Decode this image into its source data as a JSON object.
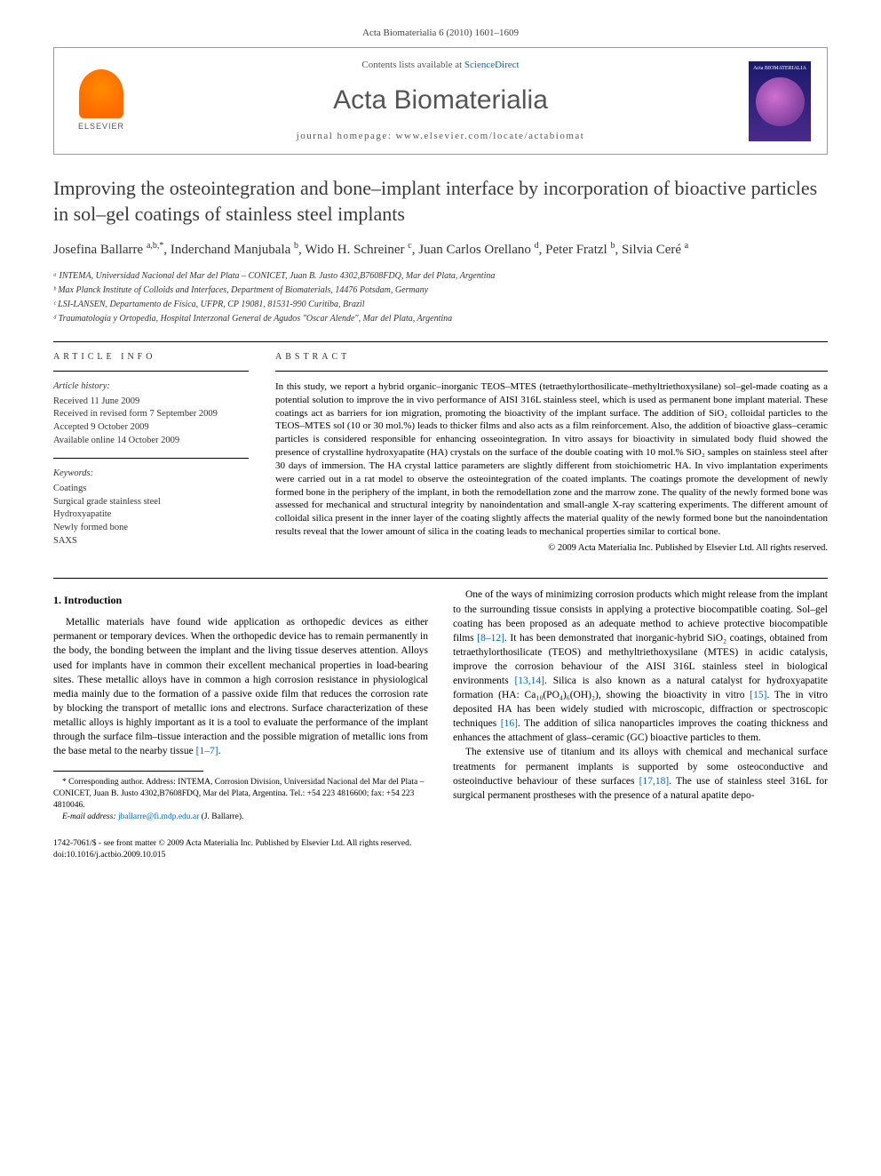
{
  "header": {
    "citation": "Acta Biomaterialia 6 (2010) 1601–1609"
  },
  "masthead": {
    "contents_prefix": "Contents lists available at ",
    "contents_link": "ScienceDirect",
    "publisher_label": "ELSEVIER",
    "journal_name": "Acta Biomaterialia",
    "homepage_prefix": "journal homepage: ",
    "homepage_url": "www.elsevier.com/locate/actabiomat",
    "cover_label": "Acta BIOMATERIALIA"
  },
  "article": {
    "title": "Improving the osteointegration and bone–implant interface by incorporation of bioactive particles in sol–gel coatings of stainless steel implants",
    "authors_html": "Josefina Ballarre <sup>a,b,*</sup>, Inderchand Manjubala <sup>b</sup>, Wido H. Schreiner <sup>c</sup>, Juan Carlos Orellano <sup>d</sup>, Peter Fratzl <sup>b</sup>, Silvia Ceré <sup>a</sup>",
    "affiliations": [
      "ᵃ INTEMA, Universidad Nacional del Mar del Plata – CONICET, Juan B. Justo 4302,B7608FDQ, Mar del Plata, Argentina",
      "ᵇ Max Planck Institute of Colloids and Interfaces, Department of Biomaterials, 14476 Potsdam, Germany",
      "ᶜ LSI-LANSEN, Departamento de Física, UFPR, CP 19081, 81531-990 Curitiba, Brazil",
      "ᵈ Traumatología y Ortopedia, Hospital Interzonal General de Agudos \"Oscar Alende\", Mar del Plata, Argentina"
    ]
  },
  "info": {
    "heading": "ARTICLE INFO",
    "history_label": "Article history:",
    "history": [
      "Received 11 June 2009",
      "Received in revised form 7 September 2009",
      "Accepted 9 October 2009",
      "Available online 14 October 2009"
    ],
    "keywords_label": "Keywords:",
    "keywords": [
      "Coatings",
      "Surgical grade stainless steel",
      "Hydroxyapatite",
      "Newly formed bone",
      "SAXS"
    ]
  },
  "abstract": {
    "heading": "ABSTRACT",
    "text": "In this study, we report a hybrid organic–inorganic TEOS–MTES (tetraethylorthosilicate–methyltriethoxysilane) sol–gel-made coating as a potential solution to improve the in vivo performance of AISI 316L stainless steel, which is used as permanent bone implant material. These coatings act as barriers for ion migration, promoting the bioactivity of the implant surface. The addition of SiO₂ colloidal particles to the TEOS–MTES sol (10 or 30 mol.%) leads to thicker films and also acts as a film reinforcement. Also, the addition of bioactive glass–ceramic particles is considered responsible for enhancing osseointegration. In vitro assays for bioactivity in simulated body fluid showed the presence of crystalline hydroxyapatite (HA) crystals on the surface of the double coating with 10 mol.% SiO₂ samples on stainless steel after 30 days of immersion. The HA crystal lattice parameters are slightly different from stoichiometric HA. In vivo implantation experiments were carried out in a rat model to observe the osteointegration of the coated implants. The coatings promote the development of newly formed bone in the periphery of the implant, in both the remodellation zone and the marrow zone. The quality of the newly formed bone was assessed for mechanical and structural integrity by nanoindentation and small-angle X-ray scattering experiments. The different amount of colloidal silica present in the inner layer of the coating slightly affects the material quality of the newly formed bone but the nanoindentation results reveal that the lower amount of silica in the coating leads to mechanical properties similar to cortical bone.",
    "copyright": "© 2009 Acta Materialia Inc. Published by Elsevier Ltd. All rights reserved."
  },
  "body": {
    "section_heading": "1. Introduction",
    "para1": "Metallic materials have found wide application as orthopedic devices as either permanent or temporary devices. When the orthopedic device has to remain permanently in the body, the bonding between the implant and the living tissue deserves attention. Alloys used for implants have in common their excellent mechanical properties in load-bearing sites. These metallic alloys have in common a high corrosion resistance in physiological media mainly due to the formation of a passive oxide film that reduces the corrosion rate by blocking the transport of metallic ions and electrons. Surface characterization of these metallic alloys is highly important as it is a tool to evaluate the performance of the implant through the surface film–tissue interaction and the possible migration of metallic ions from the base metal to the nearby tissue ",
    "ref1": "[1–7]",
    "para1_tail": ".",
    "para2_a": "One of the ways of minimizing corrosion products which might release from the implant to the surrounding tissue consists in applying a protective biocompatible coating. Sol–gel coating has been proposed as an adequate method to achieve protective biocompatible films ",
    "ref2": "[8–12]",
    "para2_b": ". It has been demonstrated that inorganic-hybrid SiO₂ coatings, obtained from tetraethylorthosilicate (TEOS) and methyltriethoxysilane (MTES) in acidic catalysis, improve the corrosion behaviour of the AISI 316L stainless steel in biological environments ",
    "ref3": "[13,14]",
    "para2_c": ". Silica is also known as a natural catalyst for hydroxyapatite formation (HA: Ca₁₀(PO₄)₆(OH)₂), showing the bioactivity in vitro ",
    "ref4": "[15]",
    "para2_d": ". The in vitro deposited HA has been widely studied with microscopic, diffraction or spectroscopic techniques ",
    "ref5": "[16]",
    "para2_e": ". The addition of silica nanoparticles improves the coating thickness and enhances the attachment of glass–ceramic (GC) bioactive particles to them.",
    "para3_a": "The extensive use of titanium and its alloys with chemical and mechanical surface treatments for permanent implants is supported by some osteoconductive and osteoinductive behaviour of these surfaces ",
    "ref6": "[17,18]",
    "para3_b": ". The use of stainless steel 316L for surgical permanent prostheses with the presence of a natural apatite depo-"
  },
  "footnotes": {
    "corresponding": "* Corresponding author. Address: INTEMA, Corrosion Division, Universidad Nacional del Mar del Plata – CONICET, Juan B. Justo 4302,B7608FDQ, Mar del Plata, Argentina. Tel.: +54 223 4816600; fax: +54 223 4810046.",
    "email_label": "E-mail address: ",
    "email": "jballarre@fi.mdp.edu.ar",
    "email_suffix": " (J. Ballarre)."
  },
  "footer": {
    "line1": "1742-7061/$ - see front matter © 2009 Acta Materialia Inc. Published by Elsevier Ltd. All rights reserved.",
    "line2": "doi:10.1016/j.actbio.2009.10.015"
  },
  "colors": {
    "link": "#0066cc",
    "text": "#000000",
    "heading_gray": "#3a3a3a",
    "elsevier_orange": "#ff6b00",
    "cover_purple": "#4a2a8a"
  }
}
